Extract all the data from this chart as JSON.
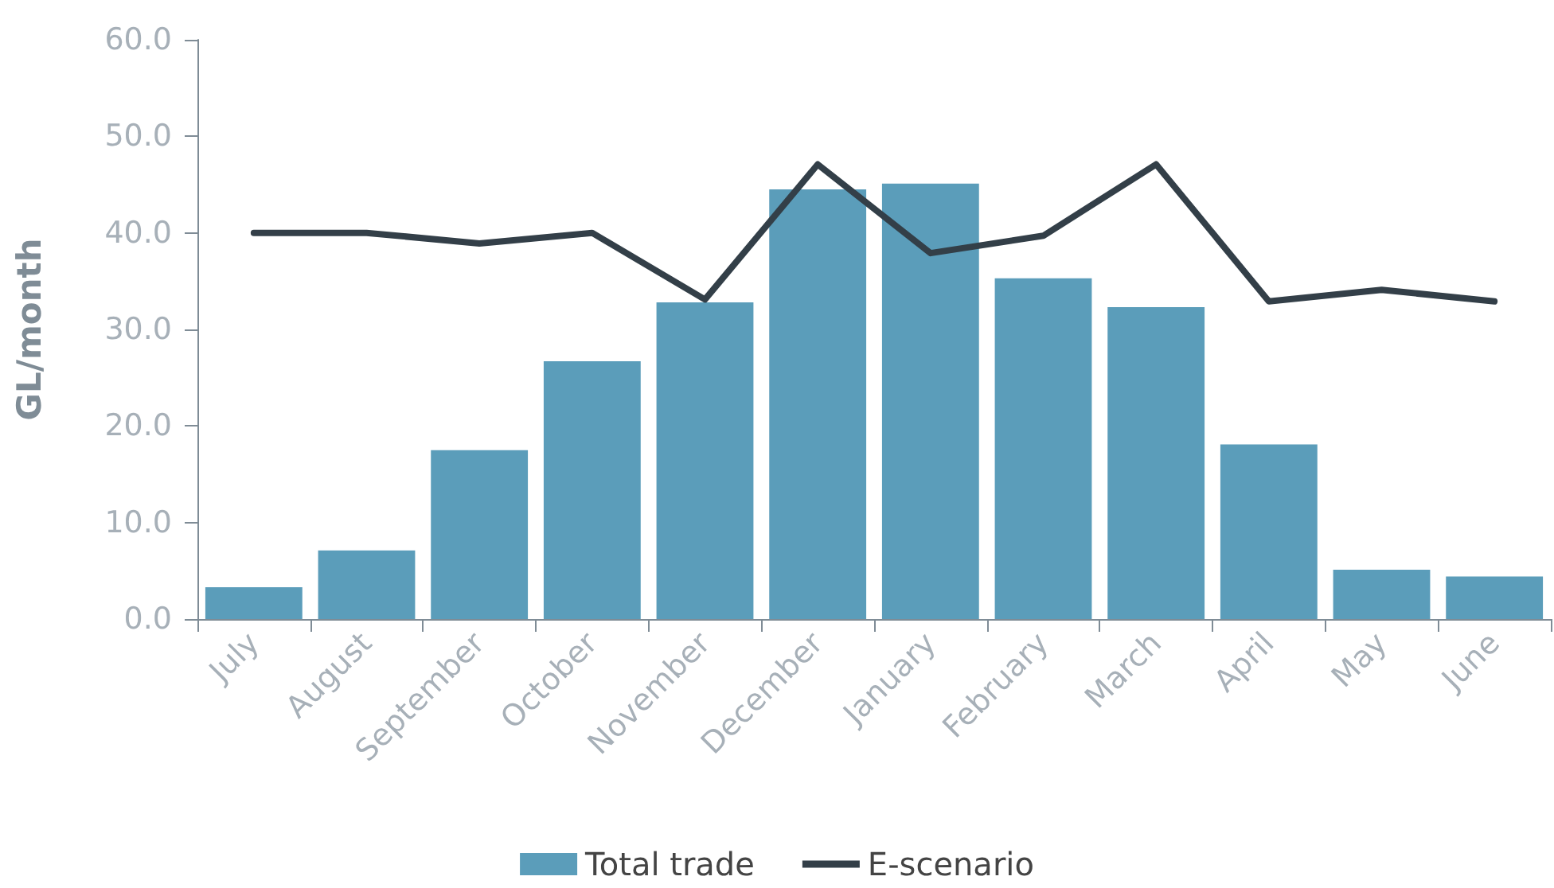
{
  "chart_data": {
    "type": "bar",
    "ylabel": "GL/month",
    "categories": [
      "July",
      "August",
      "September",
      "October",
      "November",
      "December",
      "January",
      "February",
      "March",
      "April",
      "May",
      "June"
    ],
    "series": [
      {
        "name": "Total trade",
        "color": "#5b9dba",
        "values": [
          3.3,
          7.1,
          17.5,
          26.7,
          32.8,
          44.5,
          45.1,
          35.3,
          32.3,
          18.1,
          5.1,
          4.4
        ]
      },
      {
        "name": "E-scenario",
        "type": "line",
        "color": "#333f48",
        "values": [
          40.0,
          40.0,
          38.9,
          40.0,
          33.1,
          47.1,
          37.9,
          39.7,
          47.1,
          32.9,
          34.1,
          32.9
        ]
      }
    ],
    "ylim": [
      0,
      60
    ],
    "yticks": [
      {
        "value": 0,
        "label": "0.0"
      },
      {
        "value": 10,
        "label": "10.0"
      },
      {
        "value": 20,
        "label": "20.0"
      },
      {
        "value": 30,
        "label": "30.0"
      },
      {
        "value": 40,
        "label": "40.0"
      },
      {
        "value": 50,
        "label": "50.0"
      },
      {
        "value": 60,
        "label": "60.0"
      }
    ],
    "grid": false,
    "legend": "bottom",
    "marker": "none",
    "line_style": "solid"
  }
}
